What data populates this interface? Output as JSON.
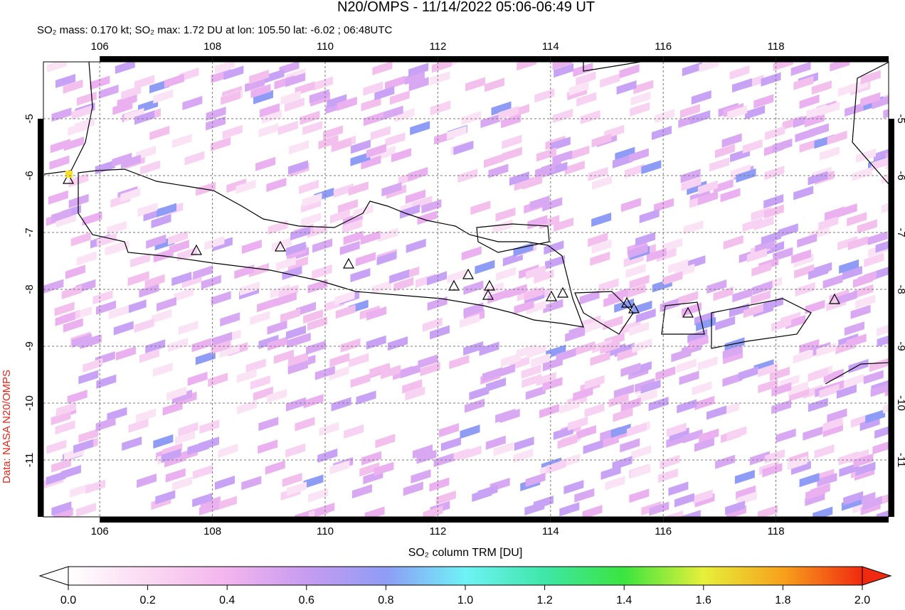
{
  "header": {
    "title": "N20/OMPS - 11/14/2022 05:06-06:49 UT",
    "subtitle": "SO₂ mass: 0.170 kt; SO₂ max: 1.72 DU at lon: 105.50 lat: -6.02 ; 06:48UTC",
    "credit": "Data: NASA N20/OMPS"
  },
  "map": {
    "xlim": [
      105,
      120
    ],
    "ylim": [
      -12,
      -4
    ],
    "xticks": [
      106,
      108,
      110,
      112,
      114,
      116,
      118
    ],
    "yticks": [
      -5,
      -6,
      -7,
      -8,
      -9,
      -10,
      -11
    ]
  },
  "colorbar": {
    "label": "SO₂ column TRM [DU]",
    "lim": [
      0,
      2
    ],
    "ticks": [
      {
        "value": 0,
        "label": "0.0"
      },
      0.2,
      0.4,
      0.6,
      0.8,
      {
        "value": 1,
        "label": "1.0"
      },
      1.2,
      1.4,
      1.6,
      1.8,
      {
        "value": 2,
        "label": "2.0"
      }
    ]
  }
}
